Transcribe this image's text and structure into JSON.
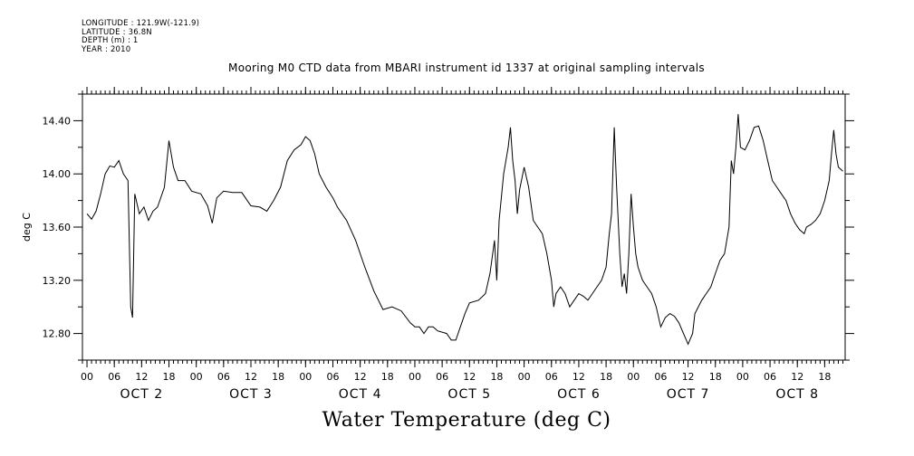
{
  "chart_data": {
    "type": "line",
    "meta_lines": [
      "LONGITUDE : 121.9W(-121.9)",
      "LATITUDE : 36.8N",
      "DEPTH (m) : 1",
      "YEAR : 2010"
    ],
    "title": "Mooring M0 CTD data from MBARI instrument id 1337 at original sampling intervals",
    "xlabel": "Water Temperature (deg C)",
    "ylabel": "deg C",
    "ylim": [
      12.6,
      14.6
    ],
    "yticks": [
      12.8,
      13.2,
      13.6,
      14.0,
      14.4
    ],
    "ytick_labels": [
      "12.80",
      "13.20",
      "13.60",
      "14.00",
      "14.40"
    ],
    "x_unit": "hours since OCT 2 00:00",
    "xlim": [
      -1,
      166.5
    ],
    "hour_tick_labels": [
      "00",
      "06",
      "12",
      "18",
      "00",
      "06",
      "12",
      "18",
      "00",
      "06",
      "12",
      "18",
      "00",
      "06",
      "12",
      "18",
      "00",
      "06",
      "12",
      "18",
      "00",
      "06",
      "12",
      "18",
      "00",
      "06",
      "12",
      "18"
    ],
    "day_labels": [
      "OCT 2",
      "OCT 3",
      "OCT 4",
      "OCT 5",
      "OCT 6",
      "OCT 7",
      "OCT 8"
    ],
    "series": [
      {
        "points": [
          [
            0,
            13.7
          ],
          [
            1,
            13.66
          ],
          [
            2,
            13.72
          ],
          [
            3,
            13.85
          ],
          [
            4,
            14.0
          ],
          [
            5,
            14.06
          ],
          [
            6,
            14.05
          ],
          [
            7,
            14.1
          ],
          [
            8,
            14.0
          ],
          [
            9,
            13.95
          ],
          [
            9.6,
            13.0
          ],
          [
            10,
            12.92
          ],
          [
            10.5,
            13.85
          ],
          [
            11.5,
            13.7
          ],
          [
            12.5,
            13.75
          ],
          [
            13.5,
            13.65
          ],
          [
            14.5,
            13.72
          ],
          [
            15.5,
            13.75
          ],
          [
            17,
            13.9
          ],
          [
            18,
            14.25
          ],
          [
            19,
            14.05
          ],
          [
            20,
            13.95
          ],
          [
            21.5,
            13.95
          ],
          [
            23,
            13.87
          ],
          [
            25,
            13.85
          ],
          [
            26.5,
            13.76
          ],
          [
            27.5,
            13.63
          ],
          [
            28.5,
            13.82
          ],
          [
            30,
            13.87
          ],
          [
            32,
            13.86
          ],
          [
            34,
            13.86
          ],
          [
            36,
            13.76
          ],
          [
            38,
            13.75
          ],
          [
            39.5,
            13.72
          ],
          [
            41,
            13.8
          ],
          [
            42.5,
            13.9
          ],
          [
            44,
            14.1
          ],
          [
            45.5,
            14.18
          ],
          [
            47,
            14.22
          ],
          [
            48,
            14.28
          ],
          [
            49,
            14.25
          ],
          [
            50,
            14.15
          ],
          [
            51,
            14.0
          ],
          [
            52.5,
            13.9
          ],
          [
            54,
            13.82
          ],
          [
            55,
            13.75
          ],
          [
            57,
            13.65
          ],
          [
            59,
            13.5
          ],
          [
            61,
            13.3
          ],
          [
            63,
            13.12
          ],
          [
            65,
            12.98
          ],
          [
            67,
            13.0
          ],
          [
            69,
            12.97
          ],
          [
            71,
            12.88
          ],
          [
            72,
            12.85
          ],
          [
            73,
            12.85
          ],
          [
            74,
            12.8
          ],
          [
            75,
            12.85
          ],
          [
            76,
            12.85
          ],
          [
            77,
            12.82
          ],
          [
            79,
            12.8
          ],
          [
            80,
            12.75
          ],
          [
            81,
            12.75
          ],
          [
            82,
            12.85
          ],
          [
            83,
            12.95
          ],
          [
            84,
            13.03
          ],
          [
            86,
            13.05
          ],
          [
            87.5,
            13.1
          ],
          [
            88.5,
            13.25
          ],
          [
            89.5,
            13.5
          ],
          [
            90,
            13.2
          ],
          [
            90.5,
            13.65
          ],
          [
            91.5,
            14.0
          ],
          [
            92.5,
            14.2
          ],
          [
            93,
            14.35
          ],
          [
            93.5,
            14.1
          ],
          [
            94,
            13.95
          ],
          [
            94.5,
            13.7
          ],
          [
            95,
            13.88
          ],
          [
            96,
            14.05
          ],
          [
            97,
            13.9
          ],
          [
            98,
            13.65
          ],
          [
            99,
            13.6
          ],
          [
            100,
            13.55
          ],
          [
            101,
            13.4
          ],
          [
            102,
            13.2
          ],
          [
            102.5,
            13.0
          ],
          [
            103,
            13.1
          ],
          [
            104,
            13.15
          ],
          [
            105,
            13.1
          ],
          [
            106,
            13.0
          ],
          [
            107,
            13.05
          ],
          [
            108,
            13.1
          ],
          [
            109,
            13.08
          ],
          [
            110,
            13.05
          ],
          [
            111,
            13.1
          ],
          [
            112,
            13.15
          ],
          [
            113,
            13.2
          ],
          [
            114,
            13.3
          ],
          [
            114.7,
            13.55
          ],
          [
            115.2,
            13.7
          ],
          [
            115.8,
            14.35
          ],
          [
            116.3,
            13.9
          ],
          [
            117,
            13.4
          ],
          [
            117.5,
            13.15
          ],
          [
            118,
            13.25
          ],
          [
            118.5,
            13.1
          ],
          [
            119,
            13.4
          ],
          [
            119.5,
            13.85
          ],
          [
            120,
            13.6
          ],
          [
            120.5,
            13.4
          ],
          [
            121,
            13.3
          ],
          [
            122,
            13.2
          ],
          [
            123,
            13.15
          ],
          [
            124,
            13.1
          ],
          [
            125,
            13.0
          ],
          [
            126,
            12.85
          ],
          [
            127,
            12.92
          ],
          [
            128,
            12.95
          ],
          [
            129,
            12.93
          ],
          [
            130,
            12.88
          ],
          [
            131,
            12.8
          ],
          [
            132,
            12.72
          ],
          [
            133,
            12.8
          ],
          [
            133.5,
            12.95
          ],
          [
            135,
            13.05
          ],
          [
            136,
            13.1
          ],
          [
            137,
            13.15
          ],
          [
            138,
            13.25
          ],
          [
            139,
            13.35
          ],
          [
            140,
            13.4
          ],
          [
            141,
            13.6
          ],
          [
            141.5,
            14.1
          ],
          [
            142,
            14.0
          ],
          [
            142.5,
            14.2
          ],
          [
            143,
            14.45
          ],
          [
            143.5,
            14.2
          ],
          [
            144.5,
            14.18
          ],
          [
            145.5,
            14.25
          ],
          [
            146.5,
            14.35
          ],
          [
            147.5,
            14.36
          ],
          [
            148.5,
            14.25
          ],
          [
            149.5,
            14.1
          ],
          [
            150.5,
            13.95
          ],
          [
            151.5,
            13.9
          ],
          [
            152.5,
            13.85
          ],
          [
            153.5,
            13.8
          ],
          [
            154.5,
            13.7
          ],
          [
            155.5,
            13.63
          ],
          [
            156.5,
            13.58
          ],
          [
            157.5,
            13.55
          ],
          [
            158,
            13.6
          ],
          [
            159,
            13.62
          ],
          [
            160,
            13.65
          ],
          [
            161,
            13.7
          ],
          [
            162,
            13.8
          ],
          [
            163,
            13.95
          ],
          [
            163.5,
            14.15
          ],
          [
            164,
            14.33
          ],
          [
            164.5,
            14.15
          ],
          [
            165,
            14.05
          ],
          [
            166,
            14.02
          ]
        ]
      }
    ]
  }
}
